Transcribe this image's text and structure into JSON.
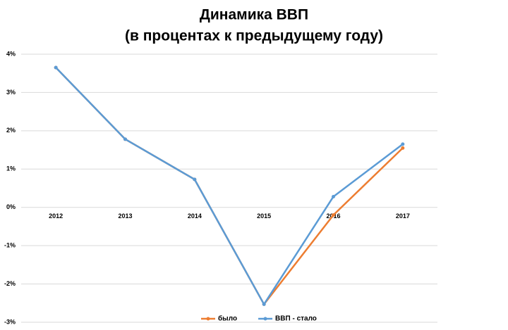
{
  "chart_data": {
    "type": "line",
    "title": "Динамика ВВП",
    "subtitle": "(в процентах к предыдущему году)",
    "categories": [
      "2012",
      "2013",
      "2014",
      "2015",
      "2016",
      "2017"
    ],
    "series": [
      {
        "name": "было",
        "color": "#ed7d31",
        "values": [
          3.65,
          1.78,
          0.73,
          -2.53,
          -0.2,
          1.55
        ]
      },
      {
        "name": "ВВП - стало",
        "color": "#5b9bd5",
        "values": [
          3.65,
          1.78,
          0.73,
          -2.53,
          0.28,
          1.65
        ]
      }
    ],
    "ylim": [
      -3,
      4
    ],
    "yticks": [
      {
        "value": -3,
        "label": "-3%"
      },
      {
        "value": -2,
        "label": "-2%"
      },
      {
        "value": -1,
        "label": "-1%"
      },
      {
        "value": 0,
        "label": "0%"
      },
      {
        "value": 1,
        "label": "1%"
      },
      {
        "value": 2,
        "label": "2%"
      },
      {
        "value": 3,
        "label": "3%"
      },
      {
        "value": 4,
        "label": "4%"
      }
    ],
    "grid": true,
    "legend": "bottom"
  }
}
